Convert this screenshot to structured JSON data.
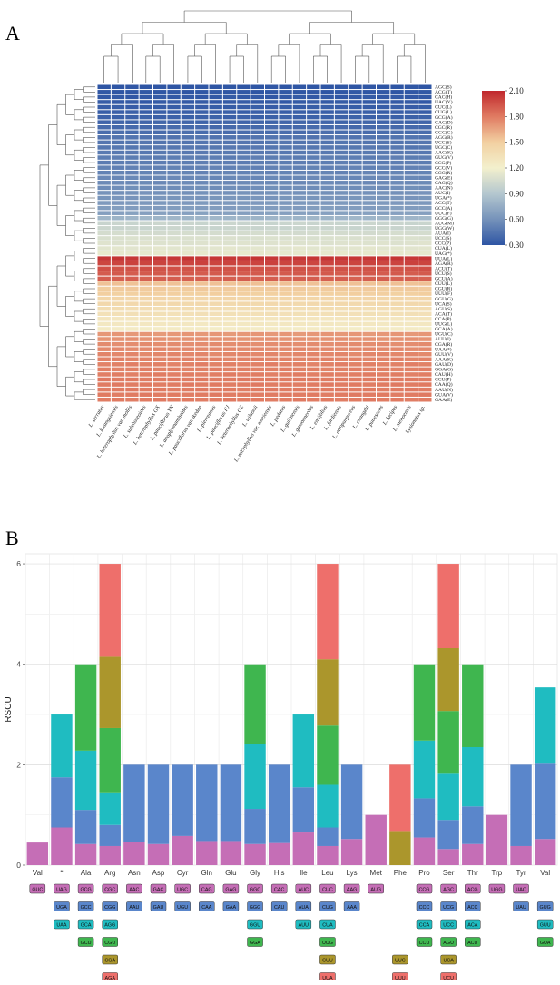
{
  "chart_data": [
    {
      "type": "heatmap",
      "panel_label": "A",
      "title": "",
      "colorbar": {
        "min": 0.3,
        "max": 2.1,
        "ticks": [
          "2.10",
          "1.80",
          "1.50",
          "1.20",
          "0.90",
          "0.60",
          "0.30"
        ],
        "colors": [
          "#c0282d",
          "#e07b62",
          "#f2d0a1",
          "#f3f0cd",
          "#b4c7cf",
          "#7592ba",
          "#2e55a4"
        ]
      },
      "columns": [
        "L. serratus",
        "L. kwangsiensis",
        "L. heterophyllus var. mollis",
        "L. sulphureoides",
        "L. heterophyllus GX",
        "L. pauciflorus YN",
        "L. anoplynnantheides",
        "L. pauciflorus var. ikedae",
        "L. pierreanus",
        "L. pauciflorus FJ",
        "L. heterophyllus GZ",
        "L. wilsonii",
        "L. micrphyllus var. emeiensis",
        "L. pedatus",
        "L. guilinensis",
        "L. gamoeneolus",
        "L. ensifolius",
        "L. fordiensis",
        "L. atropurpureus",
        "L. changzhi",
        "L. pubescens",
        "L. lacipes",
        "L. menoensis",
        "Lysionotus sp."
      ],
      "rows": [
        "AGC(S)",
        "ACG(T)",
        "CAC(H)",
        "UAC(Y)",
        "CUC(L)",
        "CUG(L)",
        "GCG(A)",
        "GAC(D)",
        "CGC(R)",
        "GGC(G)",
        "AGG(R)",
        "UCG(S)",
        "UGC(C)",
        "AAG(K)",
        "GUG(V)",
        "CCG(P)",
        "GCC(V)",
        "CGG(R)",
        "GAG(E)",
        "CAG(Q)",
        "AAC(N)",
        "AUC(I)",
        "UGA(*)",
        "ACC(T)",
        "GCC(A)",
        "UUC(F)",
        "GGG(G)",
        "AUG(M)",
        "UGG(W)",
        "AUA(I)",
        "UCC(S)",
        "CCC(P)",
        "CUA(L)",
        "UAG(*)",
        "UUA(L)",
        "AGA(R)",
        "ACU(T)",
        "UCU(S)",
        "GCU(A)",
        "CUU(L)",
        "CGU(R)",
        "UUU(F)",
        "GGU(G)",
        "UCA(S)",
        "AGU(S)",
        "ACA(T)",
        "CCA(P)",
        "UUG(L)",
        "GCA(A)",
        "UGU(C)",
        "AUU(I)",
        "CGA(R)",
        "UAA(*)",
        "GUU(V)",
        "AAA(K)",
        "GAU(D)",
        "GGA(G)",
        "CAU(H)",
        "CCU(P)",
        "CAA(Q)",
        "AAU(N)",
        "GUA(V)",
        "GAA(E)"
      ],
      "row_values": [
        0.3,
        0.31,
        0.32,
        0.33,
        0.34,
        0.35,
        0.36,
        0.38,
        0.4,
        0.42,
        0.45,
        0.46,
        0.47,
        0.48,
        0.5,
        0.5,
        0.52,
        0.53,
        0.55,
        0.56,
        0.58,
        0.6,
        0.62,
        0.64,
        0.66,
        0.68,
        0.8,
        1.0,
        1.0,
        1.05,
        1.08,
        1.1,
        1.12,
        1.14,
        2.05,
        2.0,
        1.95,
        1.92,
        1.9,
        1.55,
        1.52,
        1.5,
        1.45,
        1.42,
        1.38,
        1.35,
        1.3,
        1.28,
        1.25,
        1.7,
        1.72,
        1.74,
        1.75,
        1.76,
        1.77,
        1.78,
        1.78,
        1.79,
        1.8,
        1.8,
        1.8,
        1.8,
        1.8
      ]
    },
    {
      "type": "bar",
      "stacked": true,
      "panel_label": "B",
      "title": "",
      "xlabel": "",
      "ylabel": "RSCU",
      "ylim": [
        0,
        6.2
      ],
      "yticks": [
        "0",
        "2",
        "4",
        "6"
      ],
      "categories": [
        "Val",
        "*",
        "Ala",
        "Arg",
        "Asn",
        "Asp",
        "Cyr",
        "Gln",
        "Glu",
        "Gly",
        "His",
        "Ile",
        "Leu",
        "Lys",
        "Met",
        "Phe",
        "Pro",
        "Ser",
        "Thr",
        "Trp",
        "Tyr",
        "Val"
      ],
      "stack_colors": [
        "#c56eb6",
        "#5a86cb",
        "#1fbcc1",
        "#3fb64f",
        "#ab962c",
        "#ee6f6b"
      ],
      "stacks": [
        [
          0.45
        ],
        [
          0.75,
          1.0,
          1.25
        ],
        [
          0.42,
          0.68,
          1.18,
          1.72
        ],
        [
          0.38,
          0.42,
          0.65,
          1.28,
          1.42,
          1.85
        ],
        [
          0.46,
          1.54
        ],
        [
          0.42,
          1.58
        ],
        [
          0.58,
          1.42
        ],
        [
          0.48,
          1.52
        ],
        [
          0.48,
          1.52
        ],
        [
          0.42,
          0.7,
          1.3,
          1.58
        ],
        [
          0.44,
          1.56
        ],
        [
          0.65,
          0.9,
          1.45
        ],
        [
          0.38,
          0.37,
          0.85,
          1.18,
          1.32,
          1.9
        ],
        [
          0.52,
          1.48
        ],
        [
          1.0
        ],
        [
          0.68,
          1.32
        ],
        [
          0.55,
          0.78,
          1.15,
          1.52
        ],
        [
          0.32,
          0.58,
          0.92,
          1.25,
          1.25,
          1.68
        ],
        [
          0.42,
          0.75,
          1.18,
          1.65
        ],
        [
          1.0
        ],
        [
          0.38,
          1.62
        ],
        [
          0.52,
          1.5,
          1.52
        ]
      ],
      "codon_legend": [
        [
          [
            "GUC",
            0
          ]
        ],
        [
          [
            "UAG",
            0
          ],
          [
            "UGA",
            1
          ],
          [
            "UAA",
            2
          ]
        ],
        [
          [
            "GCG",
            0
          ],
          [
            "GCC",
            1
          ],
          [
            "GCA",
            2
          ],
          [
            "GCU",
            3
          ]
        ],
        [
          [
            "CGC",
            0
          ],
          [
            "CGG",
            1
          ],
          [
            "AGG",
            2
          ],
          [
            "CGU",
            3
          ],
          [
            "CGA",
            4
          ],
          [
            "AGA",
            5
          ]
        ],
        [
          [
            "AAC",
            0
          ],
          [
            "AAU",
            1
          ]
        ],
        [
          [
            "GAC",
            0
          ],
          [
            "GAU",
            1
          ]
        ],
        [
          [
            "UGC",
            0
          ],
          [
            "UGU",
            1
          ]
        ],
        [
          [
            "CAG",
            0
          ],
          [
            "CAA",
            1
          ]
        ],
        [
          [
            "GAG",
            0
          ],
          [
            "GAA",
            1
          ]
        ],
        [
          [
            "GGC",
            0
          ],
          [
            "GGG",
            1
          ],
          [
            "GGU",
            2
          ],
          [
            "GGA",
            3
          ]
        ],
        [
          [
            "CAC",
            0
          ],
          [
            "CAU",
            1
          ]
        ],
        [
          [
            "AUC",
            0
          ],
          [
            "AUA",
            1
          ],
          [
            "AUU",
            2
          ]
        ],
        [
          [
            "CUC",
            0
          ],
          [
            "CUG",
            1
          ],
          [
            "CUA",
            2
          ],
          [
            "UUG",
            3
          ],
          [
            "CUU",
            4
          ],
          [
            "UUA",
            5
          ]
        ],
        [
          [
            "AAG",
            0
          ],
          [
            "AAA",
            1
          ]
        ],
        [
          [
            "AUG",
            0
          ]
        ],
        [
          [
            "UUC",
            4
          ],
          [
            "UUU",
            5
          ]
        ],
        [
          [
            "CCG",
            0
          ],
          [
            "CCC",
            1
          ],
          [
            "CCA",
            2
          ],
          [
            "CCU",
            3
          ]
        ],
        [
          [
            "AGC",
            0
          ],
          [
            "UCG",
            1
          ],
          [
            "UCC",
            2
          ],
          [
            "AGU",
            3
          ],
          [
            "UCA",
            4
          ],
          [
            "UCU",
            5
          ]
        ],
        [
          [
            "ACG",
            0
          ],
          [
            "ACC",
            1
          ],
          [
            "ACA",
            2
          ],
          [
            "ACU",
            3
          ]
        ],
        [
          [
            "UGG",
            0
          ]
        ],
        [
          [
            "UAC",
            0
          ],
          [
            "UAU",
            1
          ]
        ],
        [
          [
            "GUG",
            1
          ],
          [
            "GUU",
            2
          ],
          [
            "GUA",
            3
          ]
        ]
      ]
    }
  ]
}
